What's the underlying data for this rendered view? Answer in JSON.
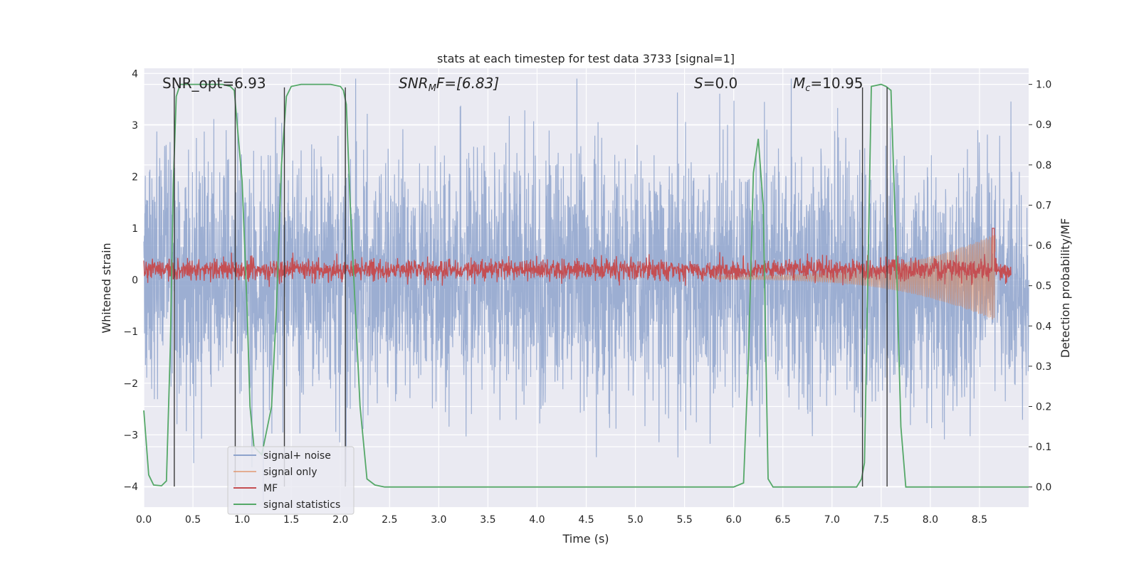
{
  "chart_data": {
    "type": "line",
    "title": "stats at each timestep for test data 3733 [signal=1]",
    "xlabel": "Time (s)",
    "ylabel": "Whitened strain",
    "ylabel_right": "Detection probability/MF",
    "xlim": [
      0.0,
      9.0
    ],
    "ylim": [
      -4.4,
      4.1
    ],
    "ylim_right": [
      -0.05,
      1.04
    ],
    "x_ticks": [
      0.0,
      0.5,
      1.0,
      1.5,
      2.0,
      2.5,
      3.0,
      3.5,
      4.0,
      4.5,
      5.0,
      5.5,
      6.0,
      6.5,
      7.0,
      7.5,
      8.0,
      8.5
    ],
    "x_tick_labels": [
      "0.0",
      "0.5",
      "1.0",
      "1.5",
      "2.0",
      "2.5",
      "3.0",
      "3.5",
      "4.0",
      "4.5",
      "5.0",
      "5.5",
      "6.0",
      "6.5",
      "7.0",
      "7.5",
      "8.0",
      "8.5"
    ],
    "y_ticks": [
      4,
      3,
      2,
      1,
      0,
      -1,
      -2,
      -3,
      -4
    ],
    "y_tick_labels": [
      "4",
      "3",
      "2",
      "1",
      "0",
      "−1",
      "−2",
      "−3",
      "−4"
    ],
    "y_right_ticks": [
      1.0,
      0.9,
      0.8,
      0.7,
      0.6,
      0.5,
      0.4,
      0.3,
      0.2,
      0.1,
      0.0
    ],
    "y_right_tick_labels": [
      "1.0",
      "0.9",
      "0.8",
      "0.7",
      "0.6",
      "0.5",
      "0.4",
      "0.3",
      "0.2",
      "0.1",
      "0.0"
    ],
    "grid": true,
    "legend_position": "bottom-left",
    "colors": {
      "background": "#eaeaf2",
      "grid": "#ffffff",
      "signal_noise": "#8ea3cc",
      "signal_only": "#dd8452",
      "mf": "#c44e52",
      "signal_statistics": "#55a868",
      "vlines": "#3a3a3a"
    },
    "annotations": {
      "snr_opt": "SNR_opt=6.93",
      "snr_mf_italic": "SNR",
      "snr_mf_sub": "M",
      "snr_mf_rest": "F=[6.83]",
      "s_italic": "S",
      "s_rest": "=0.0",
      "mc_italic": "M",
      "mc_sub": "c",
      "mc_rest": "=10.95"
    },
    "series": [
      {
        "name": "signal+ noise",
        "color": "#8ea3cc",
        "axis": "left",
        "kind": "noise",
        "sigma": 1.2,
        "x_start": 0.0,
        "x_end": 9.0
      },
      {
        "name": "signal only",
        "color": "#dd8452",
        "axis": "left",
        "kind": "chirp",
        "x_start": 5.8,
        "x_end": 8.66,
        "peak": 0.6,
        "trough": -1.0
      },
      {
        "name": "MF",
        "color": "#c44e52",
        "axis": "left",
        "kind": "mf",
        "baseline": 0.2,
        "spread": 0.15,
        "spike_x": 8.64,
        "spike_y": 1.0
      },
      {
        "name": "signal statistics",
        "color": "#55a868",
        "axis": "right",
        "x": [
          0.0,
          0.05,
          0.1,
          0.18,
          0.23,
          0.27,
          0.3,
          0.33,
          0.37,
          0.4,
          0.5,
          0.6,
          0.7,
          0.8,
          0.88,
          0.92,
          0.95,
          1.0,
          1.05,
          1.08,
          1.12,
          1.2,
          1.3,
          1.35,
          1.4,
          1.45,
          1.5,
          1.6,
          1.7,
          1.8,
          1.9,
          2.0,
          2.03,
          2.06,
          2.1,
          2.15,
          2.2,
          2.27,
          2.35,
          2.45,
          3.0,
          4.0,
          5.0,
          5.5,
          6.0,
          6.1,
          6.15,
          6.2,
          6.25,
          6.3,
          6.35,
          6.4,
          6.6,
          7.0,
          7.25,
          7.3,
          7.33,
          7.37,
          7.4,
          7.5,
          7.55,
          7.6,
          7.65,
          7.7,
          7.75,
          7.8,
          8.0,
          8.5,
          9.0
        ],
        "y": [
          0.19,
          0.03,
          0.005,
          0.003,
          0.015,
          0.35,
          0.75,
          0.97,
          1.0,
          1.0,
          1.0,
          1.0,
          1.0,
          1.0,
          0.995,
          0.985,
          0.9,
          0.76,
          0.45,
          0.2,
          0.1,
          0.08,
          0.2,
          0.45,
          0.8,
          0.97,
          0.995,
          1.0,
          1.0,
          1.0,
          1.0,
          0.995,
          0.985,
          0.95,
          0.7,
          0.45,
          0.2,
          0.02,
          0.005,
          0.0,
          0.0,
          0.0,
          0.0,
          0.0,
          0.0,
          0.01,
          0.32,
          0.78,
          0.865,
          0.7,
          0.02,
          0.0,
          0.0,
          0.0,
          0.0,
          0.02,
          0.06,
          0.6,
          0.995,
          1.0,
          0.995,
          0.985,
          0.6,
          0.15,
          0.0,
          0.0,
          0.0,
          0.0,
          0.0
        ]
      }
    ],
    "vertical_lines_x": [
      0.31,
      0.93,
      1.43,
      2.05,
      7.31,
      7.56
    ],
    "vertical_lines_ymin": -4.0,
    "vertical_lines_ymax": 3.73
  }
}
